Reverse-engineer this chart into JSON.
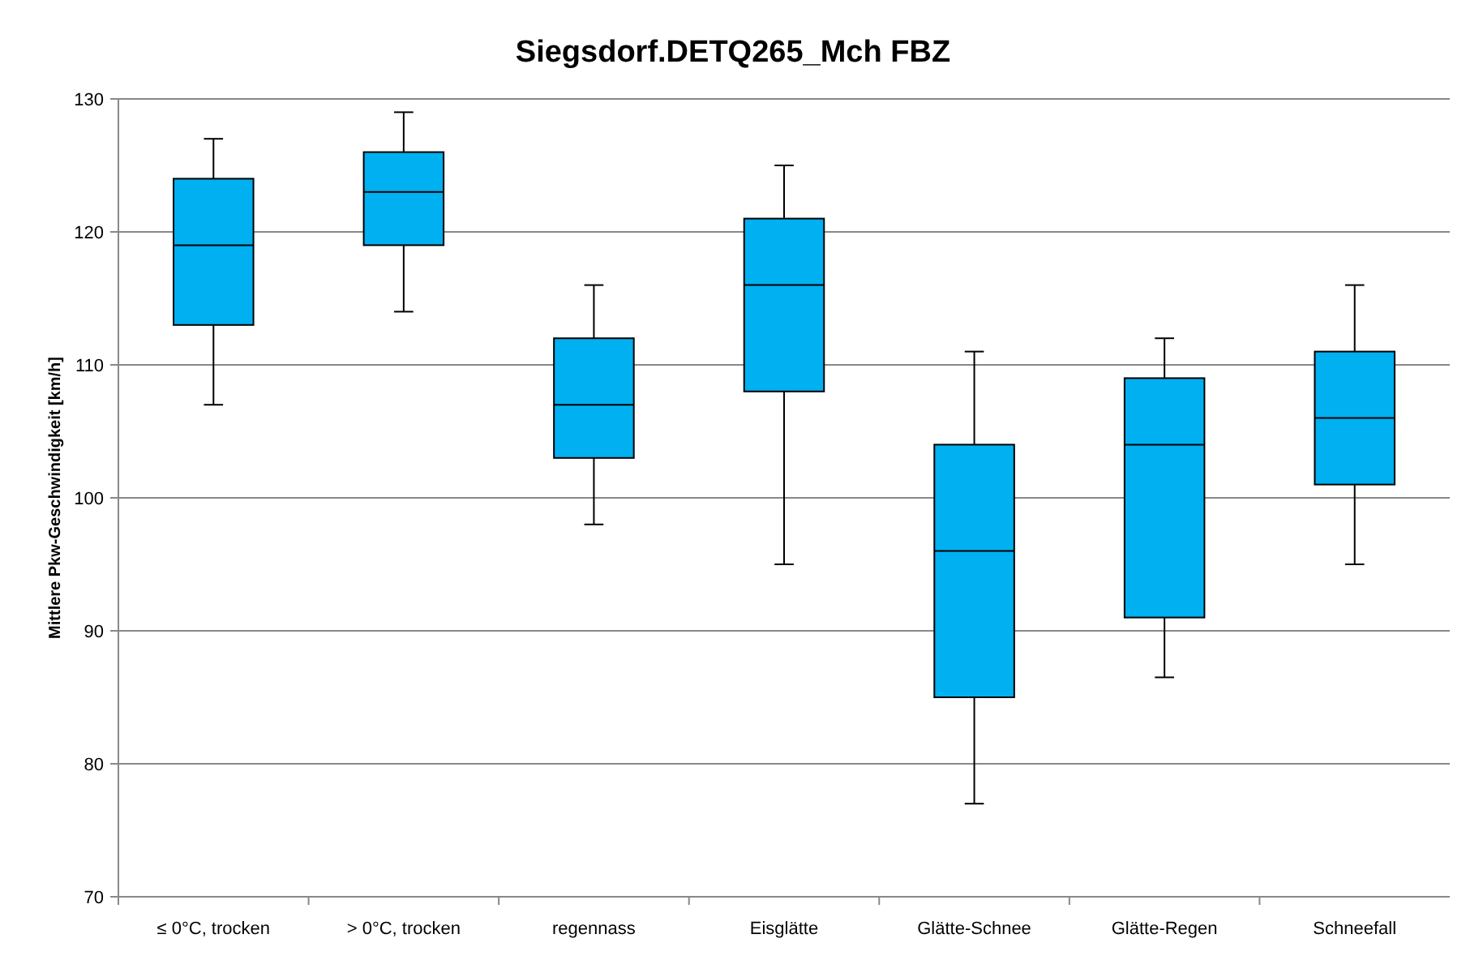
{
  "chart_data": {
    "type": "box",
    "title": "Siegsdorf.DETQ265_Mch FBZ",
    "ylabel": "Mittlere Pkw-Geschwindigkeit  [km/h]",
    "categories": [
      "≤ 0°C, trocken",
      "> 0°C, trocken",
      "regennass",
      "Eisglätte",
      "Glätte-Schnee",
      "Glätte-Regen",
      "Schneefall"
    ],
    "color": "#00b0f0",
    "boxes": [
      {
        "low": 107,
        "q1": 113,
        "median": 119,
        "q3": 124,
        "high": 127
      },
      {
        "low": 114,
        "q1": 119,
        "median": 123,
        "q3": 126,
        "high": 129
      },
      {
        "low": 98,
        "q1": 103,
        "median": 107,
        "q3": 112,
        "high": 116
      },
      {
        "low": 95,
        "q1": 108,
        "median": 116,
        "q3": 121,
        "high": 125
      },
      {
        "low": 77,
        "q1": 85,
        "median": 96,
        "q3": 104,
        "high": 111
      },
      {
        "low": 86.5,
        "q1": 91,
        "median": 104,
        "q3": 109,
        "high": 112
      },
      {
        "low": 95,
        "q1": 101,
        "median": 106,
        "q3": 111,
        "high": 116
      }
    ],
    "ylim": [
      70,
      130
    ],
    "yticks": [
      70,
      80,
      90,
      100,
      110,
      120,
      130
    ],
    "grid": "y"
  }
}
